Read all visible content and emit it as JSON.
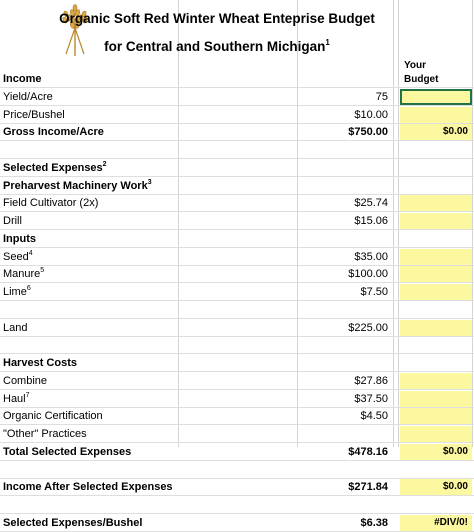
{
  "title": {
    "line1": "Organic Soft Red Winter Wheat Enteprise Budget",
    "line2": "for Central and Southern Michigan",
    "line2_note": "1"
  },
  "your_budget_header": {
    "line1": "Your",
    "line2": "Budget"
  },
  "logo_icon": "wheat-icon",
  "colors": {
    "budget_fill": "#fcf8a0",
    "selection_border": "#217346",
    "gridline": "#d4d4d4"
  },
  "rows": [
    {
      "label": "Income",
      "note": "",
      "value": "",
      "budget": "",
      "bold": true,
      "highlight": false
    },
    {
      "label": "Yield/Acre",
      "note": "",
      "value": "75",
      "budget": "",
      "bold": false,
      "highlight": true,
      "selected": true
    },
    {
      "label": "Price/Bushel",
      "note": "",
      "value": "$10.00",
      "budget": "",
      "bold": false,
      "highlight": true
    },
    {
      "label": "Gross Income/Acre",
      "note": "",
      "value": "$750.00",
      "budget": "$0.00",
      "bold": true,
      "highlight": true
    },
    {
      "label": "",
      "note": "",
      "value": "",
      "budget": "",
      "bold": false,
      "highlight": false
    },
    {
      "label": "Selected Expenses",
      "note": "2",
      "value": "",
      "budget": "",
      "bold": true,
      "highlight": false
    },
    {
      "label": "Preharvest Machinery Work",
      "note": "3",
      "value": "",
      "budget": "",
      "bold": true,
      "highlight": false
    },
    {
      "label": "Field Cultivator (2x)",
      "note": "",
      "value": "$25.74",
      "budget": "",
      "bold": false,
      "highlight": true
    },
    {
      "label": "Drill",
      "note": "",
      "value": "$15.06",
      "budget": "",
      "bold": false,
      "highlight": true
    },
    {
      "label": "Inputs",
      "note": "",
      "value": "",
      "budget": "",
      "bold": true,
      "highlight": false
    },
    {
      "label": "Seed",
      "note": "4",
      "value": "$35.00",
      "budget": "",
      "bold": false,
      "highlight": true
    },
    {
      "label": "Manure",
      "note": "5",
      "value": "$100.00",
      "budget": "",
      "bold": false,
      "highlight": true
    },
    {
      "label": "Lime",
      "note": "6",
      "value": "$7.50",
      "budget": "",
      "bold": false,
      "highlight": true
    },
    {
      "label": "",
      "note": "",
      "value": "",
      "budget": "",
      "bold": false,
      "highlight": false
    },
    {
      "label": "Land",
      "note": "",
      "value": "$225.00",
      "budget": "",
      "bold": false,
      "highlight": true
    },
    {
      "label": "",
      "note": "",
      "value": "",
      "budget": "",
      "bold": false,
      "highlight": false
    },
    {
      "label": "Harvest Costs",
      "note": "",
      "value": "",
      "budget": "",
      "bold": true,
      "highlight": false
    },
    {
      "label": "Combine",
      "note": "",
      "value": "$27.86",
      "budget": "",
      "bold": false,
      "highlight": true
    },
    {
      "label": "Haul",
      "note": "7",
      "value": "$37.50",
      "budget": "",
      "bold": false,
      "highlight": true
    },
    {
      "label": "Organic Certification",
      "note": "",
      "value": "$4.50",
      "budget": "",
      "bold": false,
      "highlight": true
    },
    {
      "label": "\"Other\" Practices",
      "note": "",
      "value": "",
      "budget": "",
      "bold": false,
      "highlight": true
    },
    {
      "label": "Total Selected Expenses",
      "note": "",
      "value": "$478.16",
      "budget": "$0.00",
      "bold": true,
      "highlight": true
    },
    {
      "label": "",
      "note": "",
      "value": "",
      "budget": "",
      "bold": false,
      "highlight": false
    },
    {
      "label": "Income After Selected Expenses",
      "note": "",
      "value": "$271.84",
      "budget": "$0.00",
      "bold": true,
      "highlight": true
    },
    {
      "label": "",
      "note": "",
      "value": "",
      "budget": "",
      "bold": false,
      "highlight": false
    },
    {
      "label": "Selected Expenses/Bushel",
      "note": "",
      "value": "$6.38",
      "budget": "#DIV/0!",
      "bold": true,
      "highlight": true
    }
  ]
}
